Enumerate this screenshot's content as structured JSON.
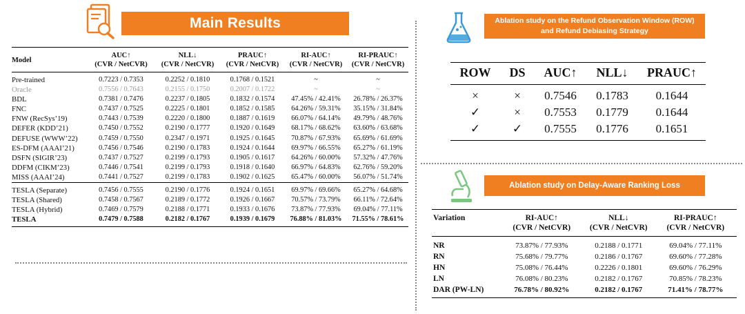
{
  "main_results": {
    "title": "Main Results",
    "headers": [
      {
        "l1": "Model",
        "l2": ""
      },
      {
        "l1": "AUC↑",
        "l2": "(CVR / NetCVR)"
      },
      {
        "l1": "NLL↓",
        "l2": "(CVR / NetCVR)"
      },
      {
        "l1": "PRAUC↑",
        "l2": "(CVR / NetCVR)"
      },
      {
        "l1": "RI-AUC↑",
        "l2": "(CVR / NetCVR)"
      },
      {
        "l1": "RI-PRAUC↑",
        "l2": "(CVR / NetCVR)"
      }
    ],
    "rows": [
      [
        "Pre-trained",
        "0.7223 / 0.7353",
        "0.2252 / 0.1810",
        "0.1768 / 0.1521",
        "~",
        "~"
      ],
      [
        "Oracle",
        "0.7556 / 0.7643",
        "0.2155 / 0.1750",
        "0.2007 / 0.1722",
        "~",
        "~"
      ],
      [
        "BDL",
        "0.7381 / 0.7476",
        "0.2237 / 0.1805",
        "0.1832 / 0.1574",
        "47.45% / 42.41%",
        "26.78% / 26.37%"
      ],
      [
        "FNC",
        "0.7437 / 0.7525",
        "0.2225 / 0.1801",
        "0.1852 / 0.1585",
        "64.26% / 59.31%",
        "35.15% / 31.84%"
      ],
      [
        "FNW (RecSys’19)",
        "0.7443 / 0.7539",
        "0.2220 / 0.1800",
        "0.1887 / 0.1619",
        "66.07% / 64.14%",
        "49.79% / 48.76%"
      ],
      [
        "DEFER (KDD’21)",
        "0.7450 / 0.7552",
        "0.2190 / 0.1777",
        "0.1920 / 0.1649",
        "68.17% / 68.62%",
        "63.60% / 63.68%"
      ],
      [
        "DEFUSE (WWW’22)",
        "0.7459 / 0.7550",
        "0.2347 / 0.1971",
        "0.1925 / 0.1645",
        "70.87% / 67.93%",
        "65.69% / 61.69%"
      ],
      [
        "ES-DFM (AAAI’21)",
        "0.7456 / 0.7546",
        "0.2190 / 0.1783",
        "0.1924 / 0.1644",
        "69.97% / 66.55%",
        "65.27% / 61.19%"
      ],
      [
        "DSFN (SIGIR’23)",
        "0.7437 / 0.7527",
        "0.2199 / 0.1793",
        "0.1905 / 0.1617",
        "64.26% / 60.00%",
        "57.32% / 47.76%"
      ],
      [
        "DDFM (CIKM’23)",
        "0.7446 / 0.7541",
        "0.2199 / 0.1793",
        "0.1918 / 0.1640",
        "66.97% / 64.83%",
        "62.76% / 59.20%"
      ],
      [
        "MISS (AAAI’24)",
        "0.7441 / 0.7527",
        "0.2199 / 0.1783",
        "0.1902 / 0.1625",
        "65.47% / 60.00%",
        "56.07% / 51.74%"
      ],
      [
        "TESLA (Separate)",
        "0.7456 / 0.7555",
        "0.2190 / 0.1776",
        "0.1924 / 0.1651",
        "69.97% / 69.66%",
        "65.27% / 64.68%"
      ],
      [
        "TESLA (Shared)",
        "0.7458 / 0.7567",
        "0.2189 / 0.1772",
        "0.1926 / 0.1667",
        "70.57% / 73.79%",
        "66.11% / 72.64%"
      ],
      [
        "TESLA (Hybrid)",
        "0.7469 / 0.7579",
        "0.2188 / 0.1771",
        "0.1933 / 0.1676",
        "73.87% / 77.93%",
        "69.04% / 77.11%"
      ],
      [
        "TESLA",
        "0.7479 / 0.7588",
        "0.2182 / 0.1767",
        "0.1939 / 0.1679",
        "76.88% / 81.03%",
        "71.55% / 78.61%"
      ]
    ]
  },
  "row_ablation": {
    "title": "Ablation study on the Refund Observation Window (ROW) and Refund Debiasing Strategy",
    "headers": [
      "ROW",
      "DS",
      "AUC↑",
      "NLL↓",
      "PRAUC↑"
    ],
    "rows": [
      [
        "×",
        "×",
        "0.7546",
        "0.1783",
        "0.1644"
      ],
      [
        "✓",
        "×",
        "0.7553",
        "0.1779",
        "0.1644"
      ],
      [
        "✓",
        "✓",
        "0.7555",
        "0.1776",
        "0.1651"
      ]
    ]
  },
  "dar_ablation": {
    "title": "Ablation study on Delay-Aware Ranking Loss",
    "headers": [
      {
        "l1": "Variation",
        "l2": ""
      },
      {
        "l1": "RI-AUC↑",
        "l2": "(CVR / NetCVR)"
      },
      {
        "l1": "NLL↓",
        "l2": "(CVR / NetCVR)"
      },
      {
        "l1": "RI-PRAUC↑",
        "l2": "(CVR / NetCVR)"
      }
    ],
    "rows": [
      [
        "NR",
        "73.87% / 77.93%",
        "0.2188 / 0.1771",
        "69.04% / 77.11%"
      ],
      [
        "RN",
        "75.68% / 79.77%",
        "0.2186 / 0.1767",
        "69.60% / 77.28%"
      ],
      [
        "HN",
        "75.08% / 76.44%",
        "0.2226 / 0.1801",
        "69.60% / 76.29%"
      ],
      [
        "LN",
        "76.08% / 80.23%",
        "0.2182 / 0.1767",
        "70.85% / 78.23%"
      ],
      [
        "DAR (PW-LN)",
        "76.78% / 80.92%",
        "0.2182 / 0.1767",
        "71.41% / 78.77%"
      ]
    ]
  },
  "colors": {
    "accent": "#f07f21",
    "icon_green": "#7bc67e",
    "icon_blue": "#3a9ad9",
    "oracle_gray": "#999999"
  },
  "icons": [
    "document-search-icon",
    "flask-icon",
    "microscope-icon"
  ]
}
